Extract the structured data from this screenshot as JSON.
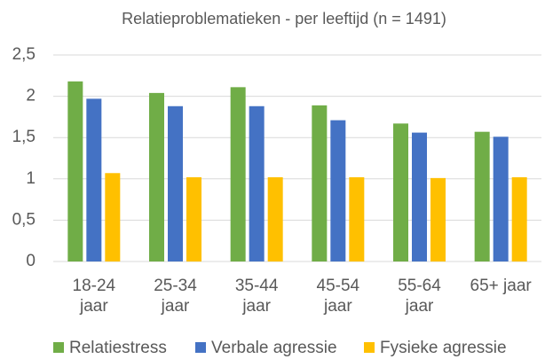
{
  "chart_data": {
    "type": "bar",
    "title": "Relatieproblematieken - per leeftijd (n = 1491)",
    "categories": [
      "18-24 jaar",
      "25-34 jaar",
      "35-44 jaar",
      "45-54 jaar",
      "55-64 jaar",
      "65+ jaar"
    ],
    "series": [
      {
        "name": "Relatiestress",
        "color": "#70ad47",
        "values": [
          2.18,
          2.04,
          2.11,
          1.89,
          1.67,
          1.57
        ]
      },
      {
        "name": "Verbale agressie",
        "color": "#4472c4",
        "values": [
          1.97,
          1.88,
          1.88,
          1.71,
          1.56,
          1.51
        ]
      },
      {
        "name": "Fysieke agressie",
        "color": "#ffc000",
        "values": [
          1.07,
          1.02,
          1.02,
          1.02,
          1.01,
          1.02
        ]
      }
    ],
    "ylim": [
      0,
      2.5
    ],
    "yticks": [
      0,
      {
        "value": 0.5,
        "label": "0,5"
      },
      1,
      {
        "value": 1.5,
        "label": "1,5"
      },
      2,
      {
        "value": 2.5,
        "label": "2,5"
      }
    ],
    "grid": true,
    "legend": "bottom"
  }
}
